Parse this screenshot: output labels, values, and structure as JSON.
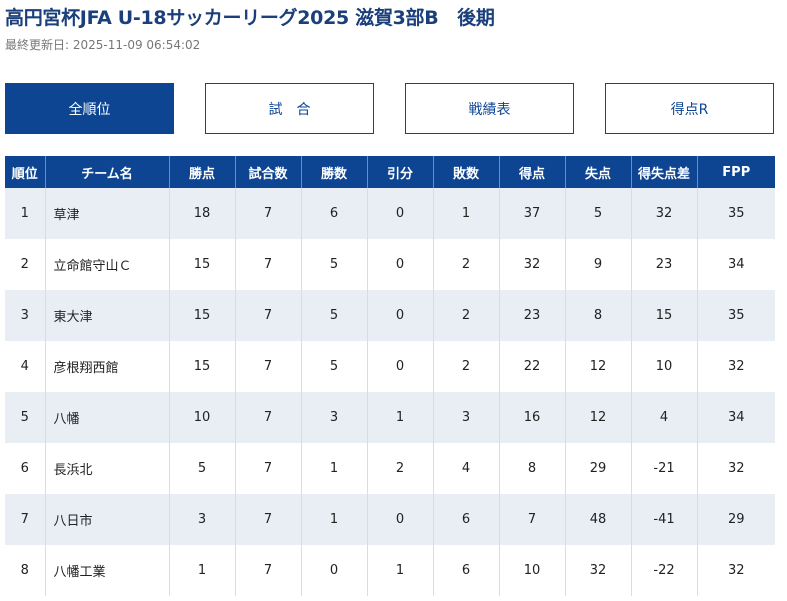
{
  "header": {
    "title": "高円宮杯JFA U-18サッカーリーグ2025 滋賀3部B　後期",
    "updated": "最終更新日: 2025-11-09 06:54:02"
  },
  "tabs": [
    {
      "label": "全順位",
      "active": true
    },
    {
      "label": "試　合",
      "active": false
    },
    {
      "label": "戦績表",
      "active": false
    },
    {
      "label": "得点R",
      "active": false
    }
  ],
  "table": {
    "columns": [
      "順位",
      "チーム名",
      "勝点",
      "試合数",
      "勝数",
      "引分",
      "敗数",
      "得点",
      "失点",
      "得失点差",
      "FPP"
    ],
    "rows": [
      [
        "1",
        "草津",
        "18",
        "7",
        "6",
        "0",
        "1",
        "37",
        "5",
        "32",
        "35"
      ],
      [
        "2",
        "立命館守山Ｃ",
        "15",
        "7",
        "5",
        "0",
        "2",
        "32",
        "9",
        "23",
        "34"
      ],
      [
        "3",
        "東大津",
        "15",
        "7",
        "5",
        "0",
        "2",
        "23",
        "8",
        "15",
        "35"
      ],
      [
        "4",
        "彦根翔西館",
        "15",
        "7",
        "5",
        "0",
        "2",
        "22",
        "12",
        "10",
        "32"
      ],
      [
        "5",
        "八幡",
        "10",
        "7",
        "3",
        "1",
        "3",
        "16",
        "12",
        "4",
        "34"
      ],
      [
        "6",
        "長浜北",
        "5",
        "7",
        "1",
        "2",
        "4",
        "8",
        "29",
        "-21",
        "32"
      ],
      [
        "7",
        "八日市",
        "3",
        "7",
        "1",
        "0",
        "6",
        "7",
        "48",
        "-41",
        "29"
      ],
      [
        "8",
        "八幡工業",
        "1",
        "7",
        "0",
        "1",
        "6",
        "10",
        "32",
        "-22",
        "32"
      ]
    ]
  }
}
